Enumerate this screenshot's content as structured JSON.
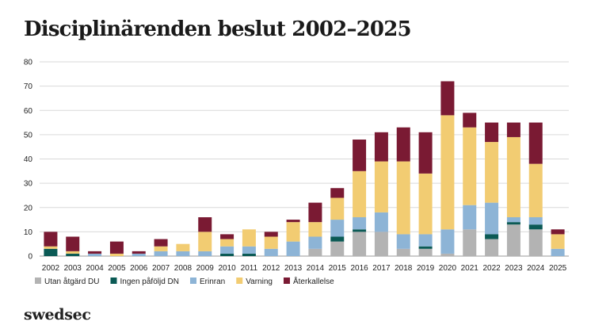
{
  "page": {
    "title": "Disciplinärenden beslut 2002–2025",
    "logo": "swedsec"
  },
  "colors": {
    "background": "#ffffff",
    "gridline": "#d9d9d9",
    "text": "#222222"
  },
  "chart_data": {
    "type": "bar",
    "stacked": true,
    "title": "Disciplinärenden beslut 2002–2025",
    "xlabel": "",
    "ylabel": "",
    "ylim": [
      0,
      80
    ],
    "yticks": [
      0,
      10,
      20,
      30,
      40,
      50,
      60,
      70,
      80
    ],
    "grid": true,
    "legend_position": "bottom-left",
    "categories": [
      "2002",
      "2003",
      "2004",
      "2005",
      "2006",
      "2007",
      "2008",
      "2009",
      "2010",
      "2011",
      "2012",
      "2013",
      "2014",
      "2015",
      "2016",
      "2017",
      "2018",
      "2019",
      "2020",
      "2021",
      "2022",
      "2023",
      "2024",
      "2025"
    ],
    "series": [
      {
        "name": "Utan åtgärd DU",
        "color": "#b3b3b3",
        "values": [
          0,
          0,
          0,
          0,
          0,
          0,
          0,
          0,
          0,
          0,
          0,
          0,
          3,
          6,
          10,
          10,
          3,
          3,
          1,
          11,
          7,
          13,
          11,
          0
        ]
      },
      {
        "name": "Ingen påföljd DN",
        "color": "#0b5a55",
        "values": [
          3,
          1,
          0,
          0,
          0,
          0,
          0,
          0,
          1,
          1,
          0,
          0,
          0,
          2,
          1,
          0,
          0,
          1,
          0,
          0,
          2,
          1,
          2,
          0
        ]
      },
      {
        "name": "Erinran",
        "color": "#8db4d6",
        "values": [
          0,
          0,
          1,
          0,
          1,
          2,
          2,
          2,
          3,
          3,
          3,
          6,
          5,
          7,
          5,
          8,
          6,
          5,
          10,
          10,
          13,
          2,
          3,
          3
        ]
      },
      {
        "name": "Varning",
        "color": "#f2cc72",
        "values": [
          1,
          1,
          0,
          1,
          0,
          2,
          3,
          8,
          3,
          7,
          5,
          8,
          6,
          9,
          19,
          21,
          30,
          25,
          47,
          32,
          25,
          33,
          22,
          6
        ]
      },
      {
        "name": "Återkallelse",
        "color": "#7a1a33",
        "values": [
          6,
          6,
          1,
          5,
          1,
          3,
          0,
          6,
          2,
          0,
          2,
          1,
          8,
          4,
          13,
          12,
          14,
          17,
          14,
          6,
          8,
          6,
          17,
          2
        ]
      }
    ]
  }
}
